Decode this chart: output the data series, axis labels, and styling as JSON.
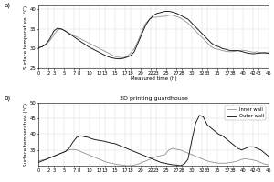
{
  "title_b": "3D printing guardhouse",
  "xlabel": "Measured time (h)",
  "ylabel": "Surface temperature (°C)",
  "xticks": [
    0,
    2,
    3,
    5,
    7,
    8,
    10,
    12,
    13,
    15,
    17,
    18,
    20,
    22,
    23,
    25,
    27,
    28,
    30,
    32,
    33,
    35,
    37,
    38,
    40,
    42,
    43,
    45
  ],
  "panel_a": {
    "ylim": [
      25,
      41
    ],
    "yticks": [
      25,
      30,
      35,
      40
    ],
    "inner_wall": [
      30.3,
      30.5,
      31.0,
      32.0,
      33.5,
      34.8,
      35.0,
      34.5,
      34.0,
      33.5,
      33.0,
      32.5,
      32.0,
      31.5,
      31.0,
      30.5,
      30.0,
      29.5,
      29.0,
      28.5,
      28.0,
      27.8,
      27.7,
      28.0,
      28.8,
      30.0,
      32.0,
      34.5,
      36.5,
      37.5,
      38.0,
      38.0,
      38.2,
      38.2,
      38.5,
      38.5,
      38.2,
      37.8,
      37.2,
      36.5,
      35.5,
      34.5,
      33.5,
      32.5,
      31.5,
      30.5,
      30.0,
      29.8,
      29.5,
      29.3,
      29.2,
      29.3,
      29.5,
      29.6,
      29.5,
      29.3,
      29.1,
      29.2,
      29.0,
      28.8,
      29.0
    ],
    "outer_wall": [
      30.2,
      30.5,
      31.2,
      32.5,
      34.5,
      35.2,
      35.0,
      34.5,
      33.8,
      33.2,
      32.5,
      31.8,
      31.2,
      30.5,
      30.0,
      29.5,
      29.0,
      28.5,
      28.0,
      27.7,
      27.5,
      27.4,
      27.5,
      27.8,
      28.2,
      29.2,
      31.5,
      33.8,
      36.0,
      37.5,
      38.5,
      39.0,
      39.2,
      39.5,
      39.5,
      39.3,
      39.0,
      38.5,
      38.0,
      37.5,
      36.5,
      35.5,
      34.5,
      33.5,
      32.5,
      31.5,
      30.8,
      30.5,
      30.0,
      29.8,
      29.5,
      29.5,
      29.5,
      29.3,
      29.0,
      28.8,
      28.7,
      28.8,
      28.9,
      29.0,
      28.8
    ]
  },
  "panel_b": {
    "ylim": [
      30,
      50
    ],
    "yticks": [
      35,
      40,
      45,
      50
    ],
    "inner_wall": [
      31.5,
      31.8,
      32.0,
      32.5,
      33.0,
      33.5,
      34.0,
      34.5,
      35.0,
      35.2,
      35.0,
      34.5,
      34.0,
      33.5,
      33.0,
      32.5,
      32.0,
      31.5,
      31.0,
      30.8,
      30.5,
      30.3,
      30.2,
      30.0,
      30.0,
      30.2,
      30.5,
      31.0,
      31.5,
      32.0,
      32.5,
      33.0,
      33.2,
      33.5,
      35.0,
      35.5,
      35.2,
      35.0,
      34.5,
      34.0,
      33.5,
      33.0,
      32.5,
      32.0,
      31.5,
      31.2,
      31.0,
      30.8,
      30.8,
      30.8,
      31.0,
      31.2,
      31.5,
      32.0,
      32.2,
      32.0,
      31.8,
      31.5,
      31.0,
      30.5,
      30.3
    ],
    "outer_wall": [
      31.0,
      31.5,
      32.0,
      32.5,
      33.0,
      33.5,
      34.0,
      34.5,
      35.5,
      37.5,
      39.0,
      39.5,
      39.2,
      39.0,
      38.5,
      38.2,
      38.0,
      37.8,
      37.5,
      37.2,
      37.0,
      36.5,
      36.0,
      35.5,
      35.0,
      34.5,
      34.0,
      33.5,
      33.0,
      32.5,
      32.0,
      31.5,
      31.0,
      30.8,
      30.5,
      30.3,
      30.2,
      30.0,
      30.5,
      32.0,
      38.0,
      43.5,
      46.0,
      45.5,
      43.0,
      42.0,
      41.0,
      40.0,
      39.5,
      38.5,
      37.5,
      36.5,
      35.5,
      35.0,
      35.5,
      36.0,
      36.0,
      35.5,
      35.0,
      34.0,
      33.0
    ]
  },
  "inner_color": "#888888",
  "outer_color": "#111111",
  "bg_color": "#ffffff",
  "legend_inner": "Inner wall",
  "legend_outer": "Outer wall",
  "fontsize_tick": 3.8,
  "fontsize_label": 4.0,
  "fontsize_title": 4.5
}
